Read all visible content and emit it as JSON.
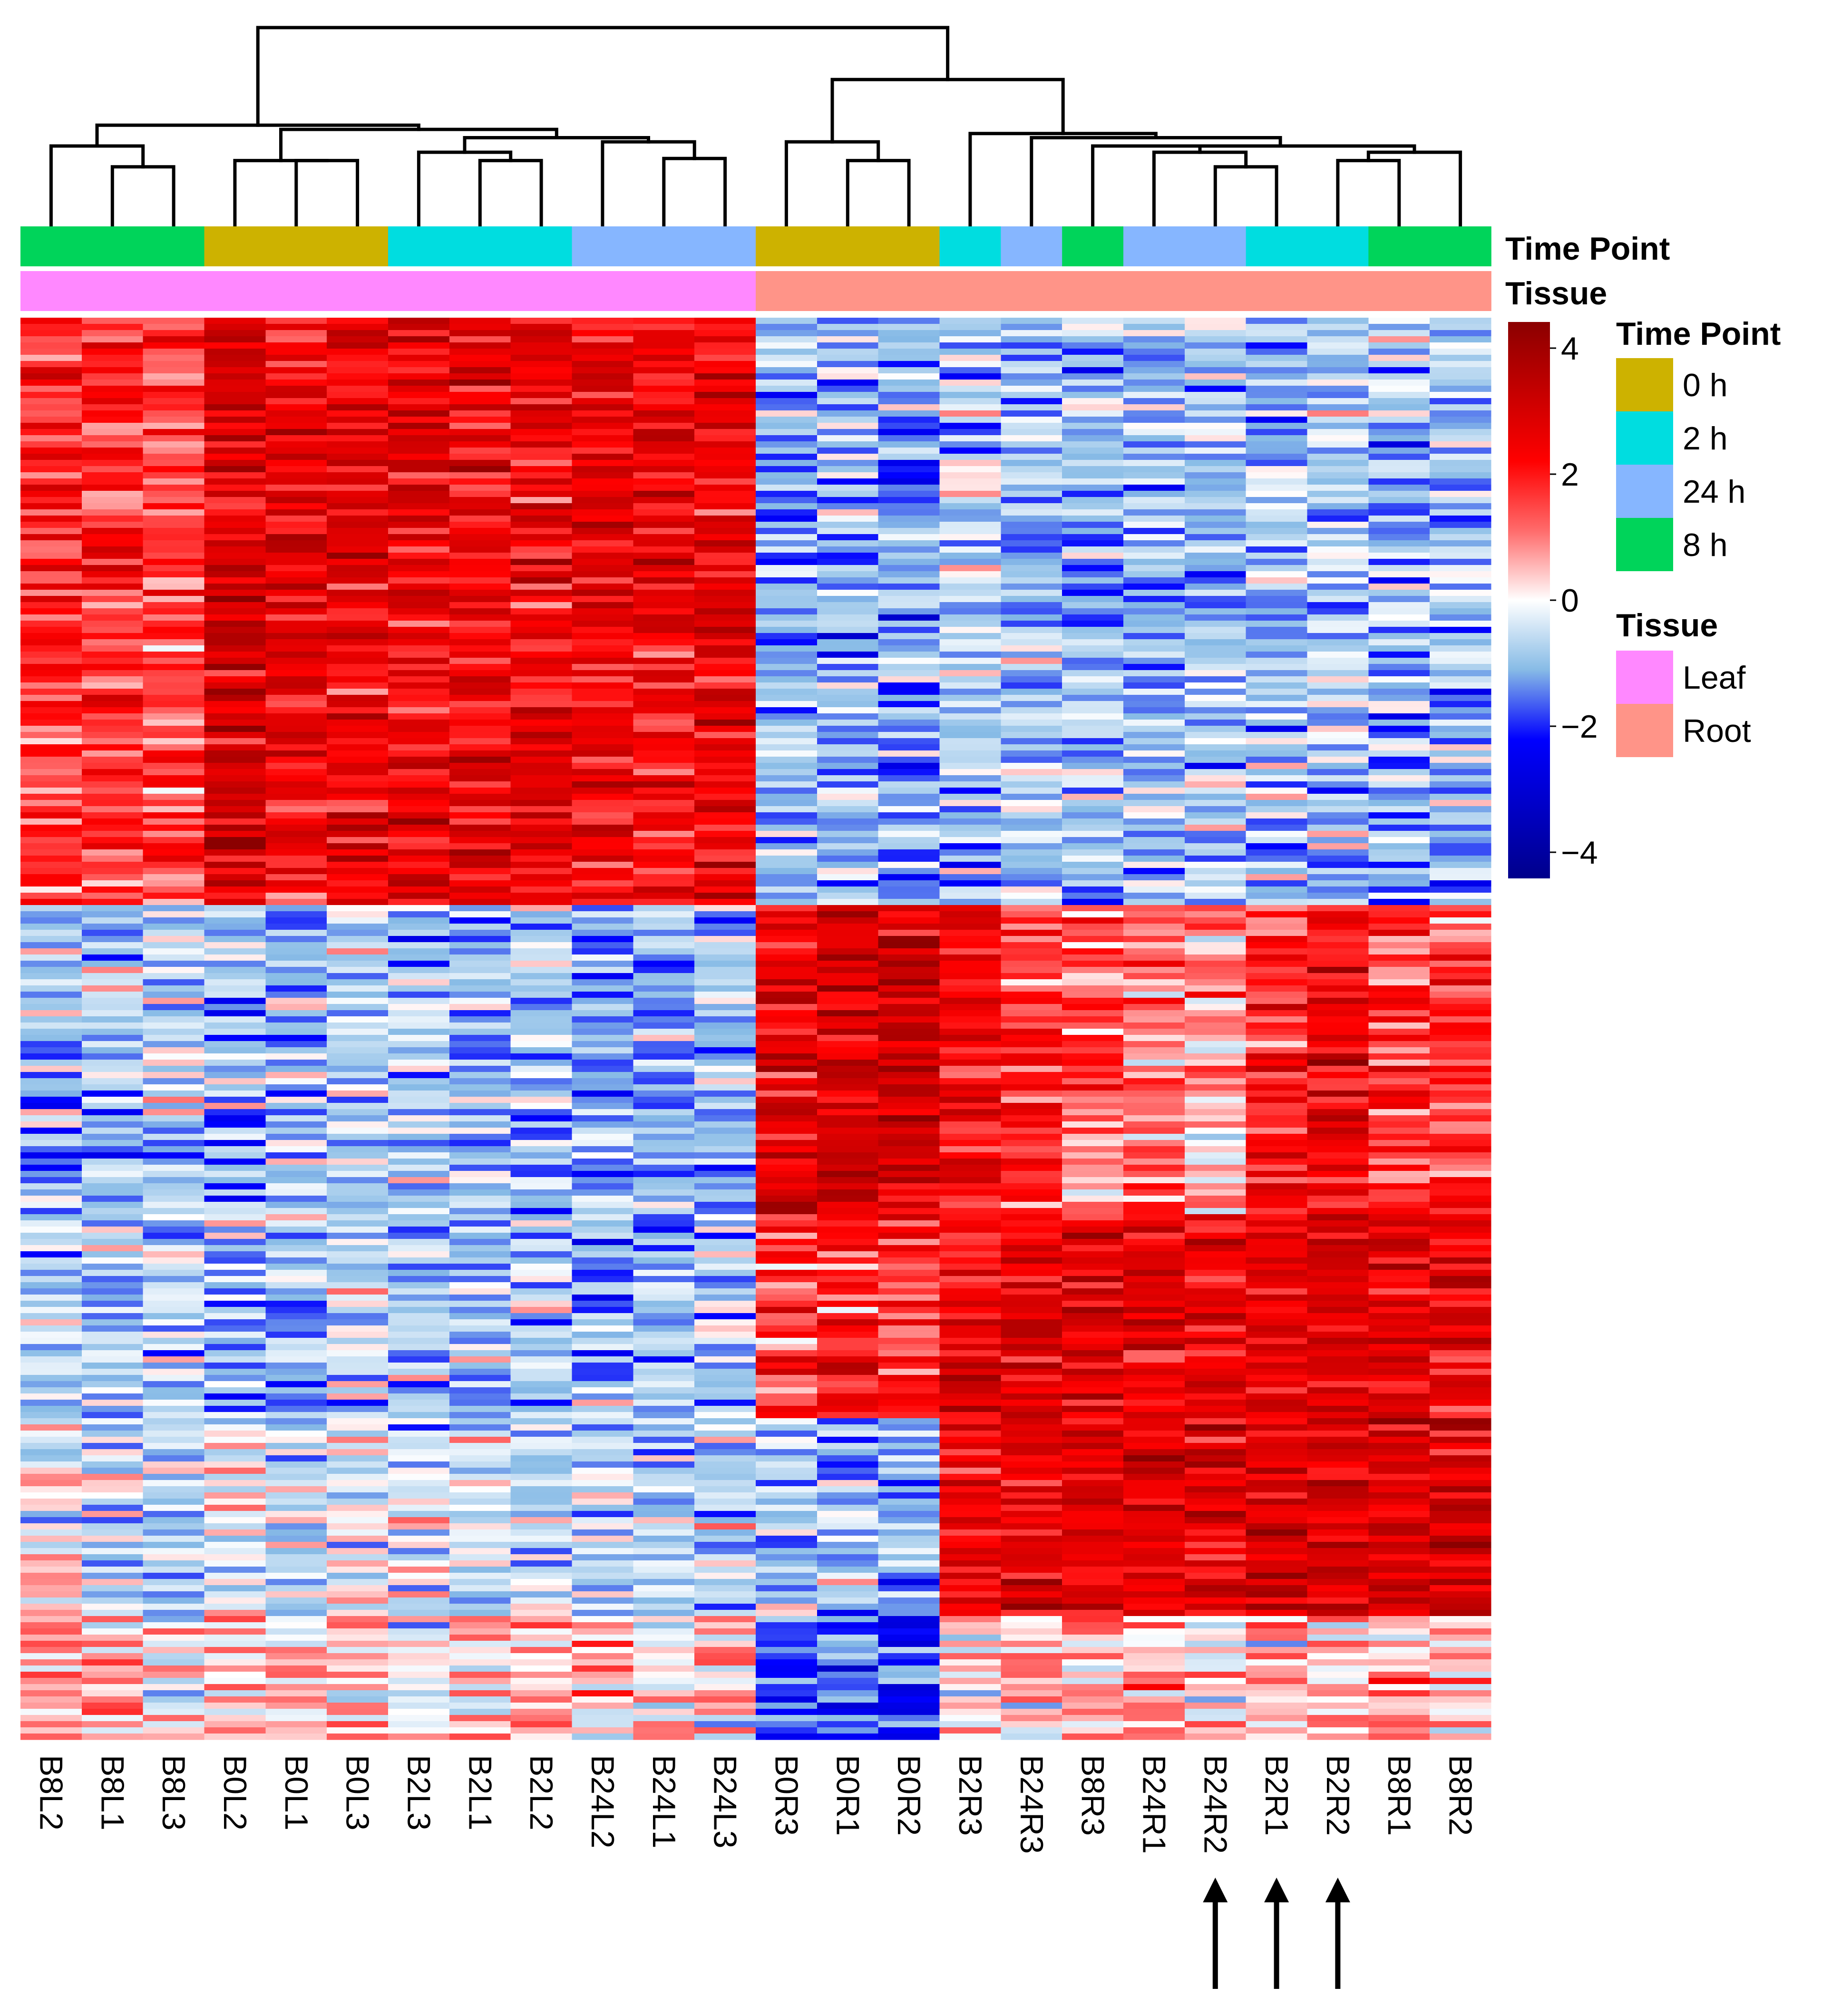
{
  "chart_data": {
    "type": "heatmap",
    "title": "",
    "columns": [
      "B8L2",
      "B8L1",
      "B8L3",
      "B0L2",
      "B0L1",
      "B0L3",
      "B2L3",
      "B2L1",
      "B2L2",
      "B24L2",
      "B24L1",
      "B24L3",
      "B0R3",
      "B0R1",
      "B0R2",
      "B2R3",
      "B24R3",
      "B8R3",
      "B24R1",
      "B24R2",
      "B2R1",
      "B2R2",
      "B8R1",
      "B8R2"
    ],
    "time_point": [
      "8 h",
      "8 h",
      "8 h",
      "0 h",
      "0 h",
      "0 h",
      "2 h",
      "2 h",
      "2 h",
      "24 h",
      "24 h",
      "24 h",
      "0 h",
      "0 h",
      "0 h",
      "2 h",
      "24 h",
      "8 h",
      "24 h",
      "24 h",
      "2 h",
      "2 h",
      "8 h",
      "8 h"
    ],
    "tissue": [
      "Leaf",
      "Leaf",
      "Leaf",
      "Leaf",
      "Leaf",
      "Leaf",
      "Leaf",
      "Leaf",
      "Leaf",
      "Leaf",
      "Leaf",
      "Leaf",
      "Root",
      "Root",
      "Root",
      "Root",
      "Root",
      "Root",
      "Root",
      "Root",
      "Root",
      "Root",
      "Root",
      "Root"
    ],
    "n_rows": 230,
    "row_blocks": [
      {
        "rows": [
          0,
          95
        ],
        "col_values": [
          1.6,
          1.6,
          1.4,
          2.6,
          2.3,
          2.4,
          2.3,
          2.3,
          2.3,
          2.3,
          2.2,
          2.4,
          -1.0,
          -1.0,
          -1.1,
          -0.7,
          -0.8,
          -0.9,
          -0.8,
          -0.8,
          -0.8,
          -0.8,
          -0.8,
          -0.8
        ]
      },
      {
        "rows": [
          95,
          145
        ],
        "col_values": [
          -0.7,
          -0.8,
          -0.6,
          -0.8,
          -0.7,
          -0.7,
          -0.8,
          -0.9,
          -0.8,
          -1.0,
          -1.1,
          -0.8,
          2.5,
          2.7,
          2.8,
          2.2,
          1.6,
          1.1,
          1.0,
          0.8,
          1.8,
          2.3,
          1.5,
          1.4
        ]
      },
      {
        "rows": [
          145,
          178
        ],
        "col_values": [
          -0.7,
          -0.8,
          -0.6,
          -0.8,
          -0.8,
          -0.7,
          -0.8,
          -0.8,
          -0.8,
          -0.9,
          -0.9,
          -0.8,
          1.5,
          1.7,
          1.6,
          2.3,
          2.5,
          2.5,
          2.5,
          2.4,
          2.3,
          2.4,
          2.5,
          2.4
        ]
      },
      {
        "rows": [
          178,
          210
        ],
        "col_values": [
          -0.2,
          -0.4,
          -0.5,
          -0.3,
          -0.3,
          -0.2,
          -0.4,
          -0.5,
          -0.4,
          -0.6,
          -0.7,
          -0.5,
          -0.8,
          -0.8,
          -0.8,
          2.2,
          2.6,
          2.6,
          2.6,
          2.5,
          2.5,
          2.6,
          2.6,
          2.6
        ]
      },
      {
        "rows": [
          210,
          230
        ],
        "col_values": [
          0.5,
          0.3,
          0.2,
          0.4,
          0.2,
          0.3,
          0.2,
          0.3,
          0.4,
          0.3,
          0.1,
          0.2,
          -1.4,
          -1.5,
          -1.9,
          0.3,
          0.4,
          0.5,
          0.5,
          0.4,
          0.5,
          0.4,
          0.6,
          0.6
        ]
      }
    ],
    "color_scale": {
      "min": -4,
      "max": 4,
      "stops": [
        {
          "value": -4,
          "color": "#00008b"
        },
        {
          "value": -2,
          "color": "#0000ff"
        },
        {
          "value": -1,
          "color": "#87bbe6"
        },
        {
          "value": 0,
          "color": "#ffffff"
        },
        {
          "value": 1,
          "color": "#ff6b6b"
        },
        {
          "value": 2,
          "color": "#ff0000"
        },
        {
          "value": 4,
          "color": "#8b0000"
        }
      ],
      "ticks": [
        "4",
        "2",
        "0",
        "−2",
        "−4"
      ]
    },
    "dendrogram_merges": [
      {
        "a": 2,
        "b": 3,
        "h": 0.28
      },
      {
        "a": 1,
        "b": -1,
        "h": 0.38
      },
      {
        "a": 5,
        "b": 6,
        "h": 0.31
      },
      {
        "a": 4,
        "b": -3,
        "h": 0.31
      },
      {
        "a": 8,
        "b": 9,
        "h": 0.31
      },
      {
        "a": 7,
        "b": -5,
        "h": 0.35
      },
      {
        "a": 11,
        "b": 12,
        "h": 0.32
      },
      {
        "a": 10,
        "b": -7,
        "h": 0.4
      },
      {
        "a": -6,
        "b": -8,
        "h": 0.42
      },
      {
        "a": -4,
        "b": -9,
        "h": 0.46
      },
      {
        "a": -2,
        "b": -10,
        "h": 0.48
      },
      {
        "a": 14,
        "b": 15,
        "h": 0.31
      },
      {
        "a": 13,
        "b": -12,
        "h": 0.4
      },
      {
        "a": 20,
        "b": 21,
        "h": 0.28
      },
      {
        "a": 19,
        "b": -14,
        "h": 0.35
      },
      {
        "a": 18,
        "b": -15,
        "h": 0.38
      },
      {
        "a": 22,
        "b": 23,
        "h": 0.31
      },
      {
        "a": 24,
        "b": -17,
        "h": 0.35
      },
      {
        "a": -16,
        "b": -18,
        "h": 0.38
      },
      {
        "a": 17,
        "b": -19,
        "h": 0.42
      },
      {
        "a": 16,
        "b": -20,
        "h": 0.44
      },
      {
        "a": -13,
        "b": -21,
        "h": 0.7
      },
      {
        "a": -11,
        "b": -22,
        "h": 0.95
      }
    ],
    "annotation_colors": {
      "time_point": {
        "0 h": "#cdb200",
        "2 h": "#00dde0",
        "24 h": "#86b6ff",
        "8 h": "#00d45a"
      },
      "tissue": {
        "Leaf": "#ff88ff",
        "Root": "#ff9488"
      }
    },
    "arrows_under_columns": [
      "B24R2",
      "B2R1",
      "B2R2"
    ],
    "legend_placement": "right"
  },
  "labels": {
    "time_point_track": "Time Point",
    "tissue_track": "Tissue"
  },
  "legend": {
    "time_point_title": "Time Point",
    "time_point_items": [
      {
        "label": "0 h",
        "color": "#cdb200"
      },
      {
        "label": "2 h",
        "color": "#00dde0"
      },
      {
        "label": "24 h",
        "color": "#86b6ff"
      },
      {
        "label": "8 h",
        "color": "#00d45a"
      }
    ],
    "tissue_title": "Tissue",
    "tissue_items": [
      {
        "label": "Leaf",
        "color": "#ff88ff"
      },
      {
        "label": "Root",
        "color": "#ff9488"
      }
    ]
  }
}
